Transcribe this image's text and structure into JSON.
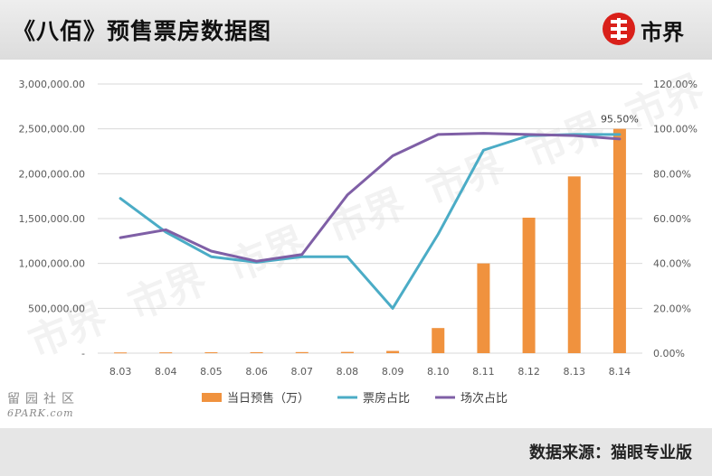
{
  "header": {
    "title": "《八佰》预售票房数据图",
    "logo_text": "市界"
  },
  "footer": {
    "source": "数据来源：猫眼专业版"
  },
  "watermark": {
    "cn": "留园社区",
    "en": "6PARK.com"
  },
  "colors": {
    "presale_bar": "#f0923e",
    "box_share_line": "#4bacc6",
    "show_share_line": "#7f5fa6",
    "logo_red": "#d9201a"
  },
  "chart_data": {
    "type": "bar",
    "categories": [
      "8.03",
      "8.04",
      "8.05",
      "8.06",
      "8.07",
      "8.08",
      "8.09",
      "8.10",
      "8.11",
      "8.12",
      "8.13",
      "8.14"
    ],
    "y_left": {
      "ylim": [
        0,
        3000000
      ],
      "ticks": [
        "-",
        "500,000.00",
        "1,000,000.00",
        "1,500,000.00",
        "2,000,000.00",
        "2,500,000.00",
        "3,000,000.00"
      ]
    },
    "y_right": {
      "ylim": [
        0,
        120
      ],
      "ticks": [
        "0.00%",
        "20.00%",
        "40.00%",
        "60.00%",
        "80.00%",
        "100.00%",
        "120.00%"
      ]
    },
    "series": [
      {
        "name": "当日预售（万）",
        "type": "bar",
        "axis": "left",
        "values": [
          8000,
          9000,
          10000,
          11000,
          12000,
          14000,
          25000,
          280000,
          1000000,
          1510000,
          1970000,
          2500000
        ]
      },
      {
        "name": "票房占比",
        "type": "line",
        "axis": "right",
        "values": [
          69,
          54,
          43,
          40.5,
          43,
          43,
          20,
          53,
          90.5,
          97,
          97.5,
          97.5
        ]
      },
      {
        "name": "场次占比",
        "type": "line",
        "axis": "right",
        "values": [
          51.5,
          55,
          45.5,
          41,
          44,
          70.5,
          88,
          97.5,
          98,
          97.5,
          97,
          95.5
        ]
      }
    ],
    "annotations": [
      {
        "category": "8.14",
        "text": "95.50%"
      }
    ],
    "legend_position": "bottom",
    "grid": true
  }
}
